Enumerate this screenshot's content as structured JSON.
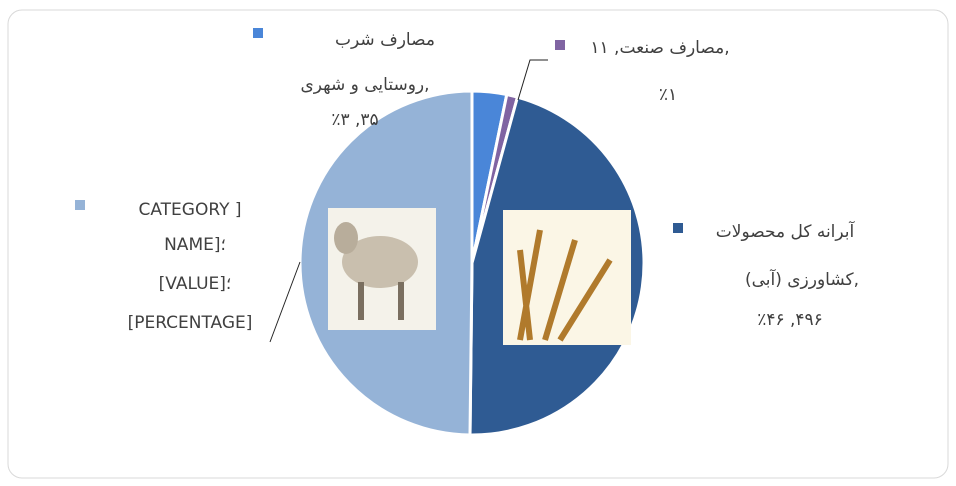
{
  "chart_data": {
    "type": "pie",
    "categories": [
      "مصارف شرب روستایی و شهری",
      "مصارف صنعت",
      "آبرانه کل محصولات کشاورزی (آبی)",
      "[CATEGORY NAME]"
    ],
    "values": [
      35,
      11,
      496,
      538
    ],
    "colors": [
      "#4a86d8",
      "#8064a2",
      "#2f5b93",
      "#95b3d7"
    ],
    "data_labels": [
      [
        "مصارف شرب",
        "روستایی و شهری,",
        "٪۳ ,۳۵"
      ],
      [
        "مصارف صنعت, ۱۱,",
        "٪۱"
      ],
      [
        "آبرانه کل محصولات",
        "کشاورزی (آبی),",
        "٪۴۶ ,۴۹۶"
      ],
      [
        "CATEGORY ]",
        "NAME]؛",
        "[VALUE]؛",
        "[PERCENTAGE]"
      ]
    ]
  }
}
